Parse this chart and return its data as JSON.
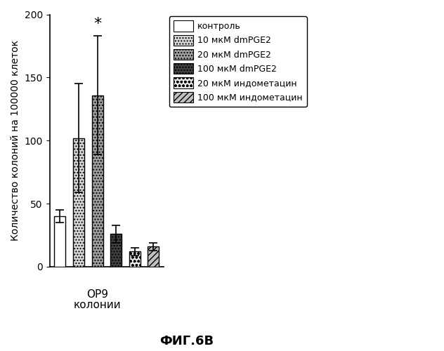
{
  "categories": [
    "контроль",
    "10 мкМ dmPGE2",
    "20 мкМ dmPGE2",
    "100 мкМ dmPGE2",
    "20 мкМ индометацин",
    "100 мкМ индометацин"
  ],
  "values": [
    40,
    102,
    136,
    26,
    12,
    16
  ],
  "errors": [
    5,
    43,
    47,
    7,
    3,
    3
  ],
  "xlabel_line1": "ОР9",
  "xlabel_line2": "колонии",
  "ylabel": "Количество колоний на 100000 клеток",
  "title": "ФИГ.6В",
  "ylim": [
    0,
    200
  ],
  "yticks": [
    0,
    50,
    100,
    150,
    200
  ],
  "star_bar_index": 2,
  "background_color": "#ffffff",
  "bar_styles": [
    {
      "facecolor": "#ffffff",
      "hatch": "",
      "edgecolor": "#000000"
    },
    {
      "facecolor": "#d8d8d8",
      "hatch": "....",
      "edgecolor": "#000000"
    },
    {
      "facecolor": "#a0a0a0",
      "hatch": "....",
      "edgecolor": "#000000"
    },
    {
      "facecolor": "#404040",
      "hatch": "....",
      "edgecolor": "#000000"
    },
    {
      "facecolor": "#e8e8e8",
      "hatch": "ooo",
      "edgecolor": "#000000"
    },
    {
      "facecolor": "#c0c0c0",
      "hatch": "////",
      "edgecolor": "#000000"
    }
  ],
  "legend_styles": [
    {
      "facecolor": "#ffffff",
      "hatch": "",
      "edgecolor": "#000000",
      "label": "контроль"
    },
    {
      "facecolor": "#d8d8d8",
      "hatch": "....",
      "edgecolor": "#000000",
      "label": "10 мкМ dmPGE2"
    },
    {
      "facecolor": "#a0a0a0",
      "hatch": "....",
      "edgecolor": "#000000",
      "label": "20 мкМ dmPGE2"
    },
    {
      "facecolor": "#404040",
      "hatch": "....",
      "edgecolor": "#000000",
      "label": "100 мкМ dmPGE2"
    },
    {
      "facecolor": "#e8e8e8",
      "hatch": "ooo",
      "edgecolor": "#000000",
      "label": "20 мкМ индометацин"
    },
    {
      "facecolor": "#c0c0c0",
      "hatch": "////",
      "edgecolor": "#000000",
      "label": "100 мкМ индометацин"
    }
  ],
  "bar_width": 0.6,
  "xlabel_bar_index": 2
}
